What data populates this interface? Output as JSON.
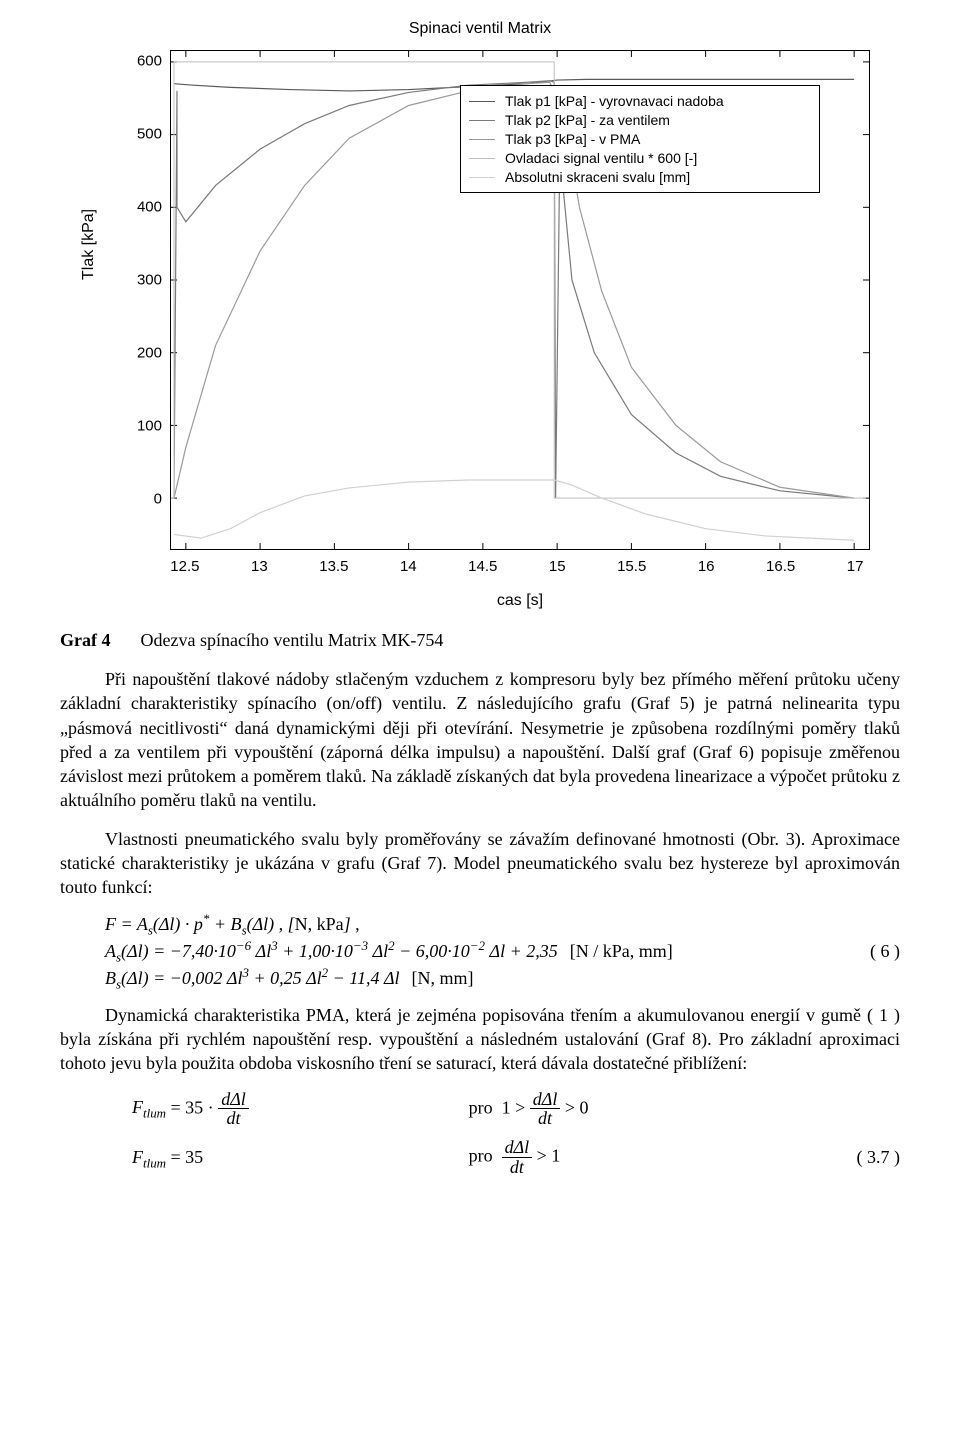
{
  "chart": {
    "type": "line",
    "title": "Spinaci ventil Matrix",
    "title_fontsize": 16,
    "font_family": "Arial",
    "xlabel": "cas [s]",
    "ylabel": "Tlak [kPa]",
    "label_fontsize": 16,
    "tick_fontsize": 15,
    "xlim": [
      12.4,
      17.1
    ],
    "ylim": [
      -70,
      615
    ],
    "xticks": [
      12.5,
      13,
      13.5,
      14,
      14.5,
      15,
      15.5,
      16,
      16.5,
      17
    ],
    "yticks": [
      0,
      100,
      200,
      300,
      400,
      500,
      600
    ],
    "background_color": "#ffffff",
    "axis_color": "#000000",
    "grid": false,
    "legend": {
      "position": "upper-right-inset",
      "border_color": "#000000",
      "bg_color": "#ffffff",
      "fontsize": 14,
      "items": [
        {
          "label": "Tlak p1 [kPa] - vyrovnavaci nadoba",
          "color": "#5a5a5a"
        },
        {
          "label": "Tlak p2 [kPa] - za ventilem",
          "color": "#7a7a7a"
        },
        {
          "label": "Tlak p3 [kPa] - v PMA",
          "color": "#9a9a9a"
        },
        {
          "label": "Ovladaci signal ventilu * 600 [-]",
          "color": "#bfbfbf"
        },
        {
          "label": "Absolutni skraceni svalu [mm]",
          "color": "#d0d0d0"
        }
      ]
    },
    "series": [
      {
        "name": "Tlak p1 (vyrovnavaci nadoba)",
        "color": "#5a5a5a",
        "line_width": 1.2,
        "data": [
          [
            12.42,
            570
          ],
          [
            12.55,
            568
          ],
          [
            12.8,
            565
          ],
          [
            13.2,
            562
          ],
          [
            13.6,
            560
          ],
          [
            14.0,
            562
          ],
          [
            14.4,
            566
          ],
          [
            14.8,
            570
          ],
          [
            15.0,
            575
          ],
          [
            15.2,
            576
          ],
          [
            15.6,
            576
          ],
          [
            16.0,
            576
          ],
          [
            16.5,
            576
          ],
          [
            17.0,
            576
          ]
        ]
      },
      {
        "name": "Tlak p2 (za ventilem)",
        "color": "#7a7a7a",
        "line_width": 1.2,
        "data": [
          [
            12.42,
            0
          ],
          [
            12.44,
            560
          ],
          [
            12.44,
            400
          ],
          [
            12.5,
            380
          ],
          [
            12.7,
            430
          ],
          [
            13.0,
            480
          ],
          [
            13.3,
            515
          ],
          [
            13.6,
            540
          ],
          [
            14.0,
            558
          ],
          [
            14.4,
            568
          ],
          [
            14.8,
            572
          ],
          [
            14.95,
            574
          ],
          [
            14.98,
            572
          ],
          [
            14.99,
            0
          ],
          [
            15.02,
            505
          ],
          [
            15.02,
            470
          ],
          [
            15.1,
            300
          ],
          [
            15.25,
            200
          ],
          [
            15.5,
            115
          ],
          [
            15.8,
            62
          ],
          [
            16.1,
            30
          ],
          [
            16.5,
            10
          ],
          [
            17.0,
            0
          ]
        ]
      },
      {
        "name": "Tlak p3 (v PMA)",
        "color": "#9a9a9a",
        "line_width": 1.2,
        "data": [
          [
            12.42,
            0
          ],
          [
            12.5,
            70
          ],
          [
            12.7,
            210
          ],
          [
            13.0,
            340
          ],
          [
            13.3,
            430
          ],
          [
            13.6,
            495
          ],
          [
            14.0,
            540
          ],
          [
            14.4,
            560
          ],
          [
            14.8,
            570
          ],
          [
            14.95,
            572
          ],
          [
            15.05,
            525
          ],
          [
            15.15,
            400
          ],
          [
            15.3,
            285
          ],
          [
            15.5,
            180
          ],
          [
            15.8,
            100
          ],
          [
            16.1,
            50
          ],
          [
            16.5,
            15
          ],
          [
            17.0,
            0
          ]
        ]
      },
      {
        "name": "Ovladaci signal * 600",
        "color": "#bfbfbf",
        "line_width": 1.0,
        "data": [
          [
            12.4,
            0
          ],
          [
            12.42,
            0
          ],
          [
            12.42,
            600
          ],
          [
            14.98,
            600
          ],
          [
            14.98,
            0
          ],
          [
            17.08,
            0
          ]
        ]
      },
      {
        "name": "Absolutni skraceni svalu",
        "color": "#d0d0d0",
        "line_width": 1.2,
        "data": [
          [
            12.42,
            -50
          ],
          [
            12.6,
            -55
          ],
          [
            12.8,
            -42
          ],
          [
            13.0,
            -20
          ],
          [
            13.3,
            3
          ],
          [
            13.6,
            14
          ],
          [
            14.0,
            22
          ],
          [
            14.4,
            25
          ],
          [
            14.8,
            25
          ],
          [
            14.98,
            25
          ],
          [
            15.1,
            18
          ],
          [
            15.3,
            0
          ],
          [
            15.6,
            -22
          ],
          [
            16.0,
            -42
          ],
          [
            16.4,
            -52
          ],
          [
            17.0,
            -58
          ]
        ]
      }
    ]
  },
  "caption": {
    "label": "Graf 4",
    "text": "Odezva spínacího ventilu Matrix MK-754"
  },
  "para1": "Při napouštění tlakové nádoby stlačeným vzduchem z kompresoru byly bez přímého měření průtoku učeny základní charakteristiky spínacího (on/off) ventilu. Z následujícího grafu (Graf 5) je patrná nelinearita typu „pásmová necitlivosti“ daná dynamickými ději při otevírání. Nesymetrie je způsobena rozdílnými poměry tlaků před a za ventilem při vypouštění (záporná délka impulsu) a napouštění. Další graf (Graf 6) popisuje změřenou závislost mezi průtokem a poměrem tlaků. Na základě získaných dat byla provedena linearizace a výpočet průtoku z aktuálního poměru tlaků na ventilu.",
  "para2": "Vlastnosti pneumatického svalu byly proměřovány se závažím definované hmotnosti (Obr. 3). Aproximace statické charakteristiky je ukázána v grafu (Graf 7). Model pneumatického svalu bez hystereze byl aproximován touto funkcí:",
  "eq_main": {
    "F": "F = A_s(Δl) · p* + B_s(Δl) , [N, kPa] ,",
    "As": "A_s(Δl) = −7,40·10^{−6} Δl^3 + 1,00·10^{−3} Δl^2 − 6,00·10^{−2} Δl + 2,35",
    "As_unit": "[N / kPa, mm]",
    "Bs": "B_s(Δl) = −0,002 Δl^3 + 0,25 Δl^2 − 11,4 Δl",
    "Bs_unit": "[N, mm]",
    "number": "( 6 )"
  },
  "para3": "Dynamická charakteristika PMA, která je zejména popisována třením a akumulovanou energií v gumě ( 1 ) byla získána při rychlém napouštění resp. vypouštění a následném ustalování (Graf 8). Pro základní aproximaci tohoto jevu byla použita obdoba viskosního tření se saturací, která dávala dostatečné přiblížení:",
  "eq_tlum": {
    "row1_left": "F_{tlum} = 35 · dΔl/dt",
    "row1_right": "pro 1 > dΔl/dt > 0",
    "row2_left": "F_{tlum} = 35",
    "row2_right": "pro dΔl/dt > 1",
    "number": "( 3.7 )"
  },
  "style": {
    "body_fontsize": 18,
    "font_family_body": "Times New Roman",
    "text_color": "#000000",
    "page_bg": "#ffffff"
  }
}
